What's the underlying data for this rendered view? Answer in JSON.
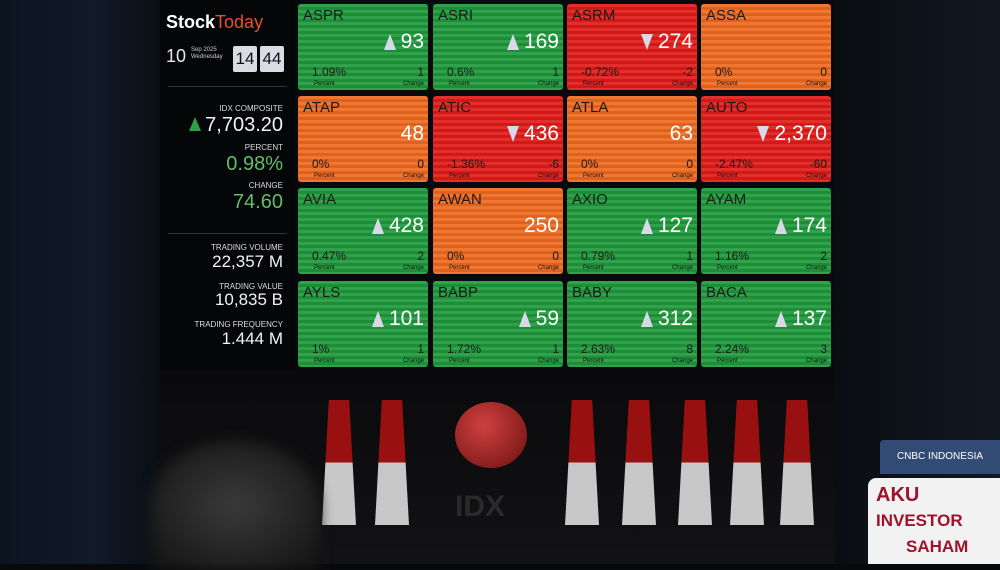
{
  "board": {
    "logo_bold": "Stock",
    "logo_light": "Today",
    "day": "10",
    "month_year": "Sep 2025",
    "weekday": "Wednesday",
    "hour": "14",
    "minute": "44",
    "index_label": "IDX COMPOSITE",
    "index_value": "7,703.20",
    "percent_label": "PERCENT",
    "percent_value": "0.98%",
    "change_label": "CHANGE",
    "change_value": "74.60",
    "volume_label": "TRADING VOLUME",
    "volume_value": "22,357 M",
    "value_label": "TRADING VALUE",
    "value_value": "10,835 B",
    "frequency_label": "TRADING FREQUENCY",
    "frequency_value": "1.444 M"
  },
  "tile_labels": {
    "percent": "Percent",
    "change": "Change"
  },
  "colors": {
    "up": "#1f9a3c",
    "down": "#e21c1a",
    "flat": "#f06a20"
  },
  "stocks": [
    {
      "ticker": "ASPR",
      "price": "93",
      "percent": "1.09%",
      "change": "1",
      "trend": "up"
    },
    {
      "ticker": "ASRI",
      "price": "169",
      "percent": "0.6%",
      "change": "1",
      "trend": "up"
    },
    {
      "ticker": "ASRM",
      "price": "274",
      "percent": "-0.72%",
      "change": "-2",
      "trend": "down"
    },
    {
      "ticker": "ASSA",
      "price": "",
      "percent": "0%",
      "change": "0",
      "trend": "flat"
    },
    {
      "ticker": "ATAP",
      "price": "48",
      "percent": "0%",
      "change": "0",
      "trend": "flat"
    },
    {
      "ticker": "ATIC",
      "price": "436",
      "percent": "-1.36%",
      "change": "-6",
      "trend": "down"
    },
    {
      "ticker": "ATLA",
      "price": "63",
      "percent": "0%",
      "change": "0",
      "trend": "flat"
    },
    {
      "ticker": "AUTO",
      "price": "2,370",
      "percent": "-2.47%",
      "change": "-60",
      "trend": "down"
    },
    {
      "ticker": "AVIA",
      "price": "428",
      "percent": "0.47%",
      "change": "2",
      "trend": "up"
    },
    {
      "ticker": "AWAN",
      "price": "250",
      "percent": "0%",
      "change": "0",
      "trend": "flat"
    },
    {
      "ticker": "AXIO",
      "price": "127",
      "percent": "0.79%",
      "change": "1",
      "trend": "up"
    },
    {
      "ticker": "AYAM",
      "price": "174",
      "percent": "1.16%",
      "change": "2",
      "trend": "up"
    },
    {
      "ticker": "AYLS",
      "price": "101",
      "percent": "1%",
      "change": "1",
      "trend": "up"
    },
    {
      "ticker": "BABP",
      "price": "59",
      "percent": "1.72%",
      "change": "1",
      "trend": "up"
    },
    {
      "ticker": "BABY",
      "price": "312",
      "percent": "2.63%",
      "change": "8",
      "trend": "up"
    },
    {
      "ticker": "BACA",
      "price": "137",
      "percent": "2.24%",
      "change": "3",
      "trend": "up"
    }
  ],
  "stage": {
    "idx_text": "IDX"
  },
  "promo": {
    "line1": "AKU",
    "line2": "INVESTOR",
    "line3": "SAHAM",
    "brand": "CNBC INDONESIA"
  }
}
